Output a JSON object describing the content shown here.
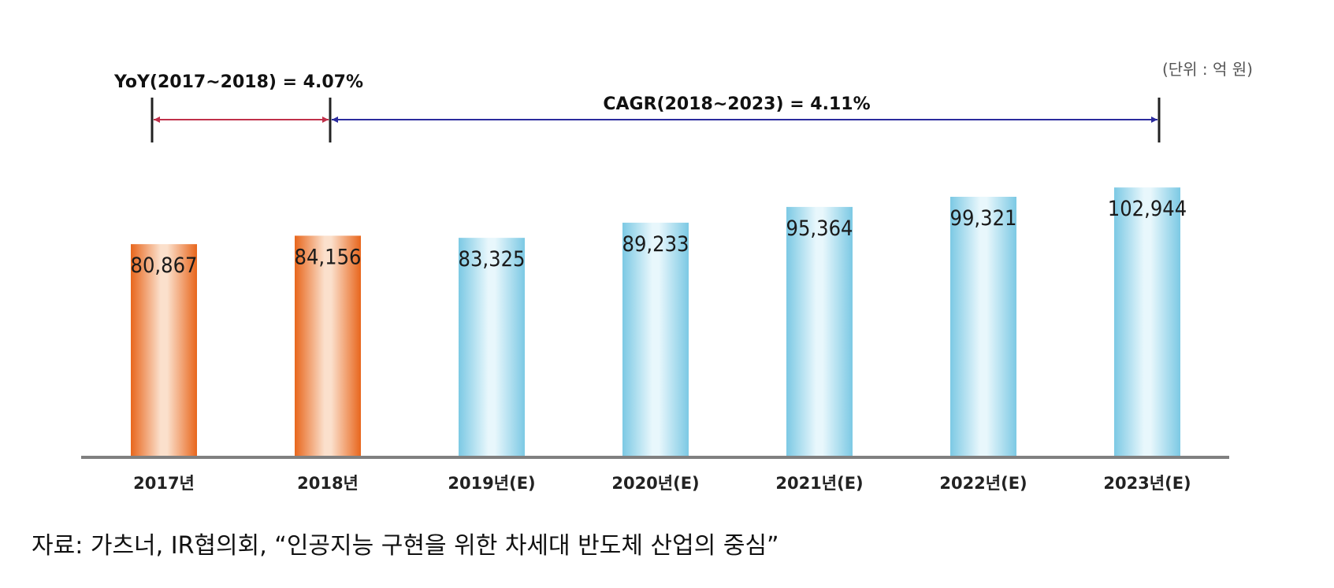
{
  "chart_data": {
    "type": "bar",
    "unit_label": "(단위 : 억 원)",
    "categories": [
      "2017년",
      "2018년",
      "2019년(E)",
      "2020년(E)",
      "2021년(E)",
      "2022년(E)",
      "2023년(E)"
    ],
    "values": [
      80867,
      84156,
      83325,
      89233,
      95364,
      99321,
      102944
    ],
    "data_labels": [
      "80,867",
      "84,156",
      "83,325",
      "89,233",
      "95,364",
      "99,321",
      "102,944"
    ],
    "bar_colors": [
      "#ee7a2f",
      "#ee7a2f",
      "#8fd2e8",
      "#8fd2e8",
      "#8fd2e8",
      "#8fd2e8",
      "#8fd2e8"
    ],
    "annotations": [
      {
        "text": "YoY(2017~2018) = 4.07%",
        "from": "2017년",
        "to": "2018년",
        "color": "#c0304a"
      },
      {
        "text": "CAGR(2018~2023) = 4.11%",
        "from": "2018년",
        "to": "2023년(E)",
        "color": "#2b2b9e"
      }
    ],
    "ylim": [
      0,
      110000
    ],
    "grid": false,
    "title": "",
    "xlabel": "",
    "ylabel": ""
  },
  "source_note": "자료: 가츠너, IR협의회, “인공지능 구현을 위한 차세대 반도체 산업의 중심”"
}
